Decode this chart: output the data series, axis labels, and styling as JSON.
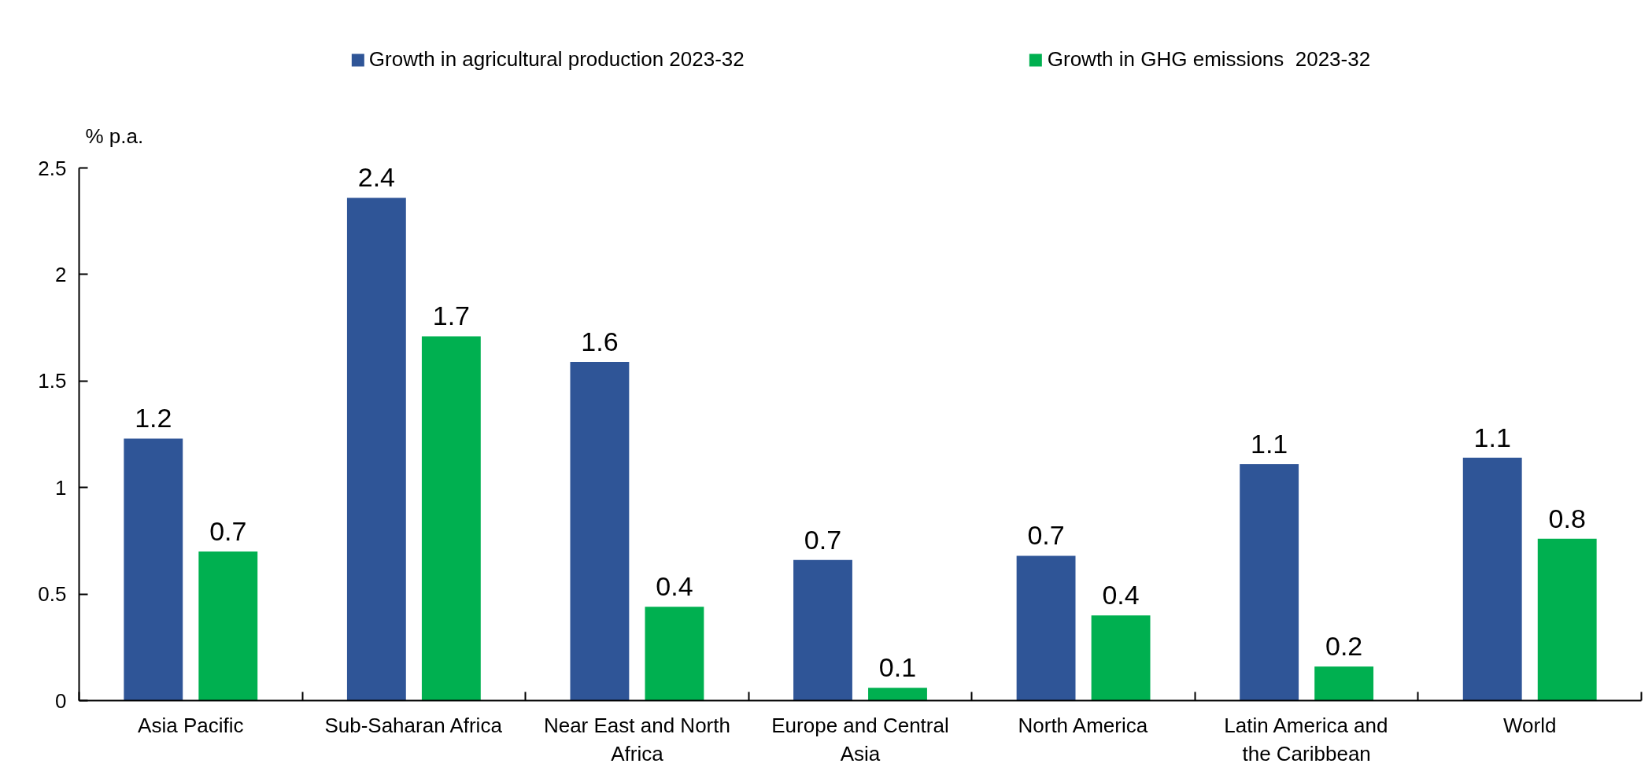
{
  "chart_data": {
    "type": "bar",
    "ylabel": "% p.a.",
    "categories": [
      "Asia Pacific",
      "Sub-Saharan Africa",
      "Near East and North Africa",
      "Europe and Central Asia",
      "North America",
      "Latin America and the Caribbean",
      "World"
    ],
    "series": [
      {
        "name": "Growth in agricultural production 2023-32",
        "color": "#2f5597",
        "values": [
          1.23,
          2.36,
          1.59,
          0.66,
          0.68,
          1.11,
          1.14
        ],
        "value_labels": [
          "1.2",
          "2.4",
          "1.6",
          "0.7",
          "0.7",
          "1.1",
          "1.1"
        ]
      },
      {
        "name": "Growth in GHG emissions  2023-32",
        "color": "#00b050",
        "values": [
          0.7,
          1.71,
          0.44,
          0.06,
          0.4,
          0.16,
          0.76
        ],
        "value_labels": [
          "0.7",
          "1.7",
          "0.4",
          "0.1",
          "0.4",
          "0.2",
          "0.8"
        ]
      }
    ],
    "ylim": [
      0,
      2.5
    ],
    "yticks": [
      0,
      0.5,
      1,
      1.5,
      2,
      2.5
    ],
    "grid": false,
    "legend": "top"
  }
}
